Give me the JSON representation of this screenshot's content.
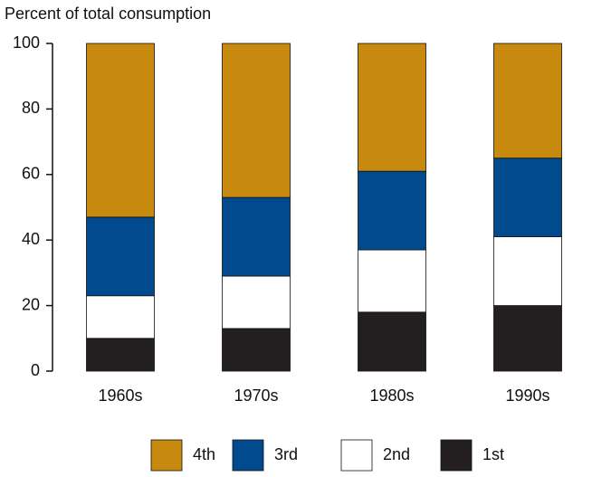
{
  "chart_data": {
    "type": "stacked_bar",
    "y_label": "Percent of total consumption",
    "categories": [
      "1960s",
      "1970s",
      "1980s",
      "1990s"
    ],
    "series": [
      {
        "name": "1st",
        "color": "#231f20",
        "values": [
          10,
          13,
          18,
          20
        ]
      },
      {
        "name": "2nd",
        "color": "#ffffff",
        "values": [
          13,
          16,
          19,
          21
        ]
      },
      {
        "name": "3rd",
        "color": "#004a8d",
        "values": [
          24,
          24,
          24,
          24
        ]
      },
      {
        "name": "4th",
        "color": "#c8890f",
        "values": [
          53,
          47,
          39,
          35
        ]
      }
    ],
    "ylim": [
      0,
      100
    ],
    "yticks": [
      0,
      20,
      40,
      60,
      80,
      100
    ]
  }
}
